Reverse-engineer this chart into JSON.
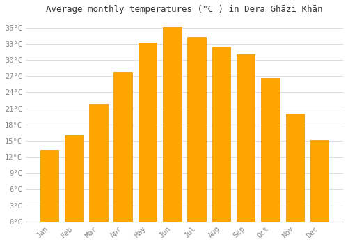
{
  "title": "Average monthly temperatures (°C ) in Dera Ghāzi Khān",
  "months": [
    "Jan",
    "Feb",
    "Mar",
    "Apr",
    "May",
    "Jun",
    "Jul",
    "Aug",
    "Sep",
    "Oct",
    "Nov",
    "Dec"
  ],
  "values": [
    13.3,
    16.0,
    21.8,
    27.8,
    33.2,
    36.1,
    34.3,
    32.5,
    31.0,
    26.6,
    20.0,
    15.1
  ],
  "bar_color": "#FFA500",
  "bar_edge_color": "#E89000",
  "background_color": "#FFFFFF",
  "grid_color": "#DDDDDD",
  "ylim": [
    0,
    37.5
  ],
  "yticks": [
    0,
    3,
    6,
    9,
    12,
    15,
    18,
    21,
    24,
    27,
    30,
    33,
    36
  ],
  "title_fontsize": 9,
  "tick_fontsize": 7.5,
  "figsize": [
    5.0,
    3.5
  ],
  "dpi": 100
}
